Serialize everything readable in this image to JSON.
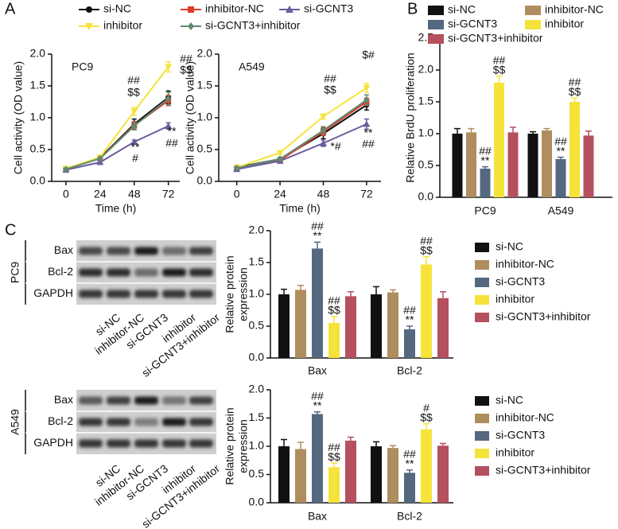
{
  "panel_labels": [
    "A",
    "B",
    "C"
  ],
  "chart_data": [
    {
      "type": "line",
      "title": "PC9",
      "x": [
        0,
        24,
        48,
        72
      ],
      "xlim": [
        -10,
        80
      ],
      "xticks": [
        0,
        24,
        48,
        72
      ],
      "xlabel": "Time (h)",
      "ylabel": "Cell activity (OD value)",
      "ylim": [
        0,
        2
      ],
      "yticks": [
        {
          "value": 0,
          "label": "0.0"
        },
        {
          "value": 0.5,
          "label": "0.5"
        },
        {
          "value": 1,
          "label": "1.0"
        },
        {
          "value": 1.5,
          "label": "1.5"
        },
        {
          "value": 2,
          "label": "2.0"
        }
      ],
      "series": [
        {
          "name": "si-NC",
          "color": "#111111",
          "marker": "circle",
          "values": [
            0.2,
            0.37,
            0.9,
            1.32
          ],
          "errors": [
            0.02,
            0.02,
            0.08,
            0.1
          ]
        },
        {
          "name": "inhibitor-NC",
          "color": "#e03a2a",
          "marker": "square",
          "values": [
            0.2,
            0.36,
            0.88,
            1.27
          ],
          "errors": [
            0.02,
            0.02,
            0.06,
            0.08
          ]
        },
        {
          "name": "si-GCNT3",
          "color": "#6c5c9c",
          "marker": "triangle-up",
          "values": [
            0.18,
            0.3,
            0.62,
            0.87
          ],
          "errors": [
            0.02,
            0.02,
            0.03,
            0.05
          ]
        },
        {
          "name": "inhibitor",
          "color": "#f5e33a",
          "marker": "triangle-down",
          "values": [
            0.2,
            0.38,
            1.1,
            1.8
          ],
          "errors": [
            0.02,
            0.02,
            0.06,
            0.08
          ]
        },
        {
          "name": "si-GCNT3+inhibitor",
          "color": "#5f8b70",
          "marker": "diamond",
          "values": [
            0.19,
            0.36,
            0.87,
            1.3
          ],
          "errors": [
            0.02,
            0.02,
            0.06,
            0.1
          ]
        }
      ],
      "annotations": [
        "##",
        "$$",
        "**",
        "#",
        "##",
        "$$",
        "**",
        "##"
      ]
    },
    {
      "type": "line",
      "title": "A549",
      "x": [
        0,
        24,
        48,
        72
      ],
      "xlim": [
        -10,
        80
      ],
      "xticks": [
        0,
        24,
        48,
        72
      ],
      "xlabel": "Time (h)",
      "ylabel": "Cell activity (OD value)",
      "ylim": [
        0,
        2
      ],
      "yticks": [
        {
          "value": 0,
          "label": "0.0"
        },
        {
          "value": 0.5,
          "label": "0.5"
        },
        {
          "value": 1,
          "label": "1.0"
        },
        {
          "value": 1.5,
          "label": "1.5"
        },
        {
          "value": 2,
          "label": "2.0"
        }
      ],
      "series": [
        {
          "color": "#111111",
          "marker": "circle",
          "values": [
            0.22,
            0.35,
            0.75,
            1.2
          ],
          "errors": [
            0.02,
            0.02,
            0.08,
            0.08
          ]
        },
        {
          "color": "#e03a2a",
          "marker": "square",
          "values": [
            0.2,
            0.33,
            0.78,
            1.25
          ],
          "errors": [
            0.02,
            0.02,
            0.06,
            0.06
          ]
        },
        {
          "color": "#6c5c9c",
          "marker": "triangle-up",
          "values": [
            0.19,
            0.32,
            0.6,
            0.9
          ],
          "errors": [
            0.02,
            0.02,
            0.05,
            0.08
          ]
        },
        {
          "color": "#f5e33a",
          "marker": "triangle-down",
          "values": [
            0.22,
            0.45,
            1.02,
            1.47
          ],
          "errors": [
            0.02,
            0.02,
            0.04,
            0.07
          ]
        },
        {
          "color": "#5f8b70",
          "marker": "diamond",
          "values": [
            0.21,
            0.35,
            0.8,
            1.28
          ],
          "errors": [
            0.02,
            0.02,
            0.06,
            0.08
          ]
        }
      ],
      "annotations": [
        "##",
        "$$",
        "*#",
        "$#",
        "**",
        "##"
      ]
    },
    {
      "type": "bar",
      "categories": [
        "PC9",
        "A549"
      ],
      "ylabel": "Relative BrdU proliferation",
      "ylim": [
        0,
        2.5
      ],
      "yticks": [
        {
          "value": 0,
          "label": "0.0"
        },
        {
          "value": 0.5,
          "label": "0.5"
        },
        {
          "value": 1,
          "label": "1.0"
        },
        {
          "value": 1.5,
          "label": "1.5"
        },
        {
          "value": 2,
          "label": "2.0"
        },
        {
          "value": 2.5,
          "label": "2.5"
        }
      ],
      "series": [
        {
          "name": "si-NC",
          "color": "#111111",
          "values": [
            1.0,
            1.0
          ],
          "errors": [
            0.08,
            0.03
          ]
        },
        {
          "name": "inhibitor-NC",
          "color": "#b08d5e",
          "values": [
            1.02,
            1.05
          ],
          "errors": [
            0.06,
            0.03
          ]
        },
        {
          "name": "si-GCNT3",
          "color": "#546880",
          "values": [
            0.45,
            0.6
          ],
          "errors": [
            0.03,
            0.03
          ]
        },
        {
          "name": "inhibitor",
          "color": "#f5e33a",
          "values": [
            1.8,
            1.5
          ],
          "errors": [
            0.1,
            0.06
          ]
        },
        {
          "name": "si-GCNT3+inhibitor",
          "color": "#b5505f",
          "values": [
            1.02,
            0.97
          ],
          "errors": [
            0.08,
            0.07
          ]
        }
      ],
      "annotations": [
        "##",
        "**",
        "##",
        "$$",
        "##",
        "**",
        "##",
        "$$"
      ]
    },
    {
      "type": "bar",
      "categories": [
        "Bax",
        "Bcl-2"
      ],
      "ylabel": [
        "Relative protein",
        "expression"
      ],
      "ylim": [
        0,
        2
      ],
      "yticks": [
        {
          "value": 0,
          "label": "0.0"
        },
        {
          "value": 0.5,
          "label": "0.5"
        },
        {
          "value": 1,
          "label": "1.0"
        },
        {
          "value": 1.5,
          "label": "1.5"
        },
        {
          "value": 2,
          "label": "2.0"
        }
      ],
      "series": [
        {
          "name": "si-NC",
          "color": "#111111",
          "values": [
            1.0,
            1.0
          ],
          "errors": [
            0.08,
            0.12
          ]
        },
        {
          "name": "inhibitor-NC",
          "color": "#b08d5e",
          "values": [
            1.07,
            1.03
          ],
          "errors": [
            0.07,
            0.04
          ]
        },
        {
          "name": "si-GCNT3",
          "color": "#546880",
          "values": [
            1.72,
            0.45
          ],
          "errors": [
            0.1,
            0.05
          ]
        },
        {
          "name": "inhibitor",
          "color": "#f5e33a",
          "values": [
            0.55,
            1.47
          ],
          "errors": [
            0.1,
            0.12
          ]
        },
        {
          "name": "si-GCNT3+inhibitor",
          "color": "#b5505f",
          "values": [
            0.97,
            0.94
          ],
          "errors": [
            0.07,
            0.1
          ]
        }
      ],
      "annotations": [
        "##",
        "**",
        "##",
        "$$",
        "##",
        "**",
        "##",
        "$$"
      ]
    },
    {
      "type": "bar",
      "categories": [
        "Bax",
        "Bcl-2"
      ],
      "ylabel": [
        "Relative protein",
        "expression"
      ],
      "ylim": [
        0,
        2
      ],
      "yticks": [
        {
          "value": 0,
          "label": "0.0"
        },
        {
          "value": 0.5,
          "label": "0.5"
        },
        {
          "value": 1,
          "label": "1.0"
        },
        {
          "value": 1.5,
          "label": "1.5"
        },
        {
          "value": 2,
          "label": "2.0"
        }
      ],
      "series": [
        {
          "name": "si-NC",
          "color": "#111111",
          "values": [
            1.0,
            1.0
          ],
          "errors": [
            0.12,
            0.08
          ]
        },
        {
          "name": "inhibitor-NC",
          "color": "#b08d5e",
          "values": [
            0.95,
            0.97
          ],
          "errors": [
            0.12,
            0.04
          ]
        },
        {
          "name": "si-GCNT3",
          "color": "#546880",
          "values": [
            1.57,
            0.53
          ],
          "errors": [
            0.04,
            0.05
          ]
        },
        {
          "name": "inhibitor",
          "color": "#f5e33a",
          "values": [
            0.63,
            1.3
          ],
          "errors": [
            0.07,
            0.1
          ]
        },
        {
          "name": "si-GCNT3+inhibitor",
          "color": "#b5505f",
          "values": [
            1.1,
            1.01
          ],
          "errors": [
            0.06,
            0.04
          ]
        }
      ],
      "annotations": [
        "##",
        "**",
        "##",
        "$$",
        "##",
        "**",
        "#",
        "$$"
      ]
    }
  ],
  "blots": [
    {
      "cell_line": "PC9",
      "bands": [
        "Bax",
        "Bcl-2",
        "GAPDH"
      ],
      "lanes": [
        "si-NC",
        "inhibitor-NC",
        "si-GCNT3",
        "inhibitor",
        "si-GCNT3+inhibitor"
      ]
    },
    {
      "cell_line": "A549",
      "bands": [
        "Bax",
        "Bcl-2",
        "GAPDH"
      ],
      "lanes": [
        "si-NC",
        "inhibitor-NC",
        "si-GCNT3",
        "inhibitor",
        "si-GCNT3+inhibitor"
      ]
    }
  ]
}
